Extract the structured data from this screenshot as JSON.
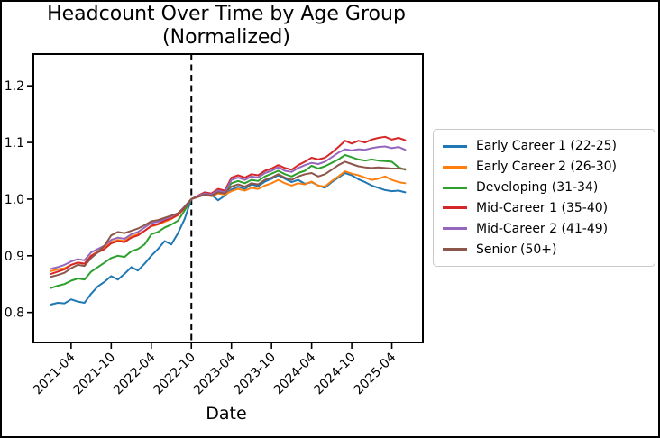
{
  "figure": {
    "background": "#ffffff",
    "border_color": "#000000"
  },
  "chart_data": {
    "type": "line",
    "title": "Headcount Over Time by Age Group",
    "subtitle": "(Normalized)",
    "xlabel": "Date",
    "ylabel": "",
    "grid": false,
    "legend_position": "outside-right",
    "x_start_month": "2021-01",
    "x_end_month": "2025-06",
    "x_tick_labels": [
      "2021-04",
      "2021-10",
      "2022-04",
      "2022-10",
      "2023-04",
      "2023-10",
      "2024-04",
      "2024-10",
      "2025-04"
    ],
    "x_tick_indices": [
      3,
      9,
      15,
      21,
      27,
      33,
      39,
      45,
      51
    ],
    "y_tick_labels": [
      "0.8",
      "0.9",
      "1.0",
      "1.1",
      "1.2"
    ],
    "y_ticks": [
      0.8,
      0.9,
      1.0,
      1.1,
      1.2
    ],
    "ylim": [
      0.747,
      1.256
    ],
    "xlim_index": [
      -2.65,
      55.65
    ],
    "normalization": {
      "vline_index": 21,
      "date": "2022-10",
      "value": 1.0,
      "line_style": "dashed",
      "line_color": "#000000"
    },
    "series": [
      {
        "name": "Early Career 1 (22-25)",
        "color": "#1f77b4",
        "values": [
          0.814,
          0.817,
          0.816,
          0.823,
          0.819,
          0.817,
          0.833,
          0.846,
          0.854,
          0.864,
          0.858,
          0.868,
          0.88,
          0.874,
          0.886,
          0.9,
          0.912,
          0.926,
          0.92,
          0.94,
          0.965,
          1.0,
          1.006,
          1.012,
          1.008,
          0.998,
          1.006,
          1.017,
          1.022,
          1.018,
          1.026,
          1.023,
          1.031,
          1.036,
          1.042,
          1.036,
          1.03,
          1.034,
          1.027,
          1.03,
          1.024,
          1.02,
          1.03,
          1.038,
          1.046,
          1.042,
          1.035,
          1.03,
          1.024,
          1.02,
          1.016,
          1.014,
          1.015,
          1.012
        ]
      },
      {
        "name": "Early Career 2 (26-30)",
        "color": "#ff7f0e",
        "values": [
          0.873,
          0.876,
          0.878,
          0.884,
          0.888,
          0.886,
          0.9,
          0.908,
          0.916,
          0.924,
          0.928,
          0.926,
          0.934,
          0.938,
          0.944,
          0.952,
          0.955,
          0.96,
          0.965,
          0.972,
          0.984,
          1.0,
          1.004,
          1.008,
          1.005,
          1.01,
          1.008,
          1.014,
          1.018,
          1.015,
          1.02,
          1.018,
          1.024,
          1.028,
          1.034,
          1.028,
          1.024,
          1.028,
          1.026,
          1.031,
          1.024,
          1.022,
          1.032,
          1.04,
          1.049,
          1.045,
          1.042,
          1.038,
          1.034,
          1.036,
          1.04,
          1.034,
          1.03,
          1.028
        ]
      },
      {
        "name": "Developing (31-34)",
        "color": "#2ca02c",
        "values": [
          0.843,
          0.847,
          0.85,
          0.856,
          0.86,
          0.858,
          0.872,
          0.88,
          0.888,
          0.896,
          0.9,
          0.898,
          0.908,
          0.912,
          0.92,
          0.938,
          0.942,
          0.95,
          0.955,
          0.962,
          0.98,
          1.0,
          1.005,
          1.01,
          1.008,
          1.014,
          1.012,
          1.028,
          1.032,
          1.028,
          1.034,
          1.032,
          1.04,
          1.045,
          1.05,
          1.044,
          1.04,
          1.046,
          1.05,
          1.059,
          1.054,
          1.058,
          1.064,
          1.07,
          1.078,
          1.074,
          1.07,
          1.068,
          1.07,
          1.068,
          1.067,
          1.066,
          1.056,
          1.052
        ]
      },
      {
        "name": "Mid-Career 1 (35-40)",
        "color": "#d62728",
        "values": [
          0.868,
          0.872,
          0.876,
          0.884,
          0.888,
          0.886,
          0.9,
          0.906,
          0.912,
          0.922,
          0.926,
          0.924,
          0.932,
          0.936,
          0.944,
          0.953,
          0.956,
          0.962,
          0.966,
          0.972,
          0.985,
          1.0,
          1.006,
          1.012,
          1.01,
          1.018,
          1.015,
          1.038,
          1.042,
          1.038,
          1.044,
          1.042,
          1.05,
          1.054,
          1.06,
          1.055,
          1.052,
          1.06,
          1.066,
          1.073,
          1.07,
          1.073,
          1.082,
          1.092,
          1.103,
          1.098,
          1.103,
          1.1,
          1.105,
          1.108,
          1.11,
          1.105,
          1.108,
          1.104
        ]
      },
      {
        "name": "Mid-Career 2 (41-49)",
        "color": "#9467bd",
        "values": [
          0.877,
          0.88,
          0.884,
          0.89,
          0.894,
          0.892,
          0.906,
          0.912,
          0.918,
          0.928,
          0.932,
          0.93,
          0.938,
          0.942,
          0.95,
          0.958,
          0.96,
          0.965,
          0.97,
          0.975,
          0.987,
          1.0,
          1.005,
          1.01,
          1.008,
          1.015,
          1.012,
          1.034,
          1.038,
          1.034,
          1.04,
          1.038,
          1.046,
          1.05,
          1.056,
          1.05,
          1.048,
          1.055,
          1.06,
          1.064,
          1.062,
          1.066,
          1.074,
          1.082,
          1.088,
          1.086,
          1.088,
          1.087,
          1.09,
          1.092,
          1.093,
          1.09,
          1.092,
          1.087
        ]
      },
      {
        "name": "Senior (50+)",
        "color": "#8c564b",
        "values": [
          0.863,
          0.866,
          0.87,
          0.878,
          0.884,
          0.882,
          0.896,
          0.906,
          0.918,
          0.936,
          0.942,
          0.94,
          0.944,
          0.948,
          0.954,
          0.961,
          0.963,
          0.967,
          0.971,
          0.975,
          0.986,
          1.0,
          1.004,
          1.008,
          1.006,
          1.012,
          1.01,
          1.022,
          1.026,
          1.022,
          1.028,
          1.026,
          1.034,
          1.038,
          1.044,
          1.038,
          1.034,
          1.04,
          1.044,
          1.046,
          1.04,
          1.044,
          1.052,
          1.06,
          1.066,
          1.062,
          1.058,
          1.056,
          1.055,
          1.056,
          1.055,
          1.054,
          1.054,
          1.053
        ]
      }
    ]
  }
}
